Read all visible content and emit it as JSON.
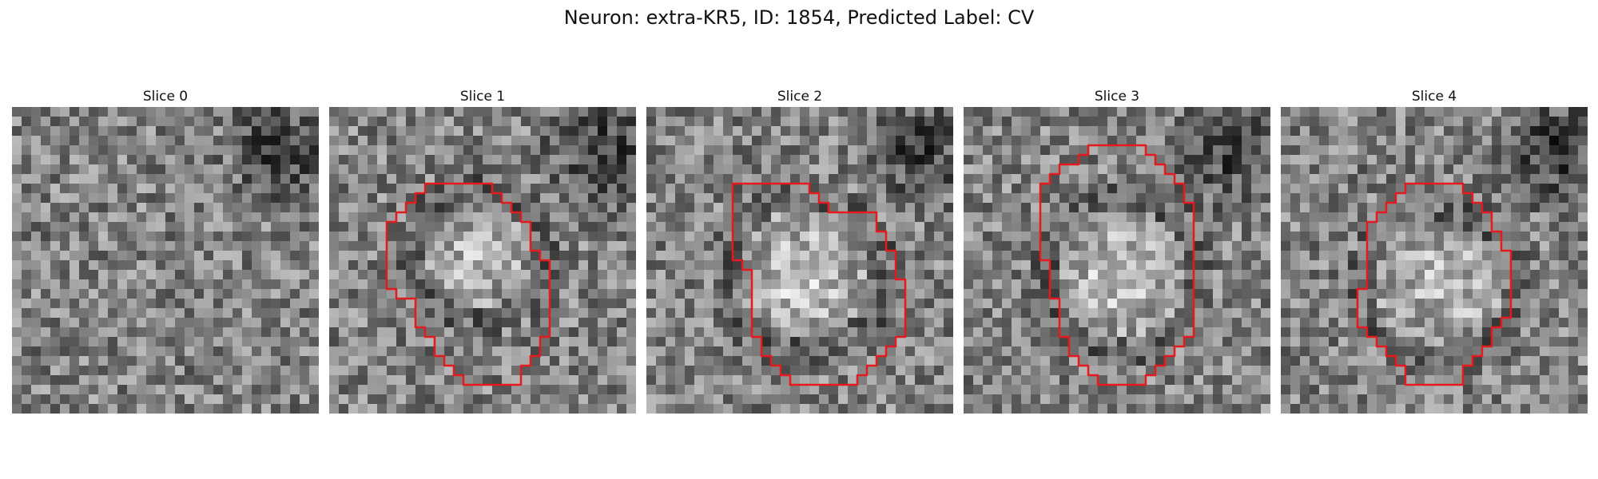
{
  "figure": {
    "title": "Neuron: extra-KR5, ID: 1854, Predicted Label: CV",
    "contour_color": "#e41a1c"
  },
  "panels": [
    {
      "title": "Slice 0"
    },
    {
      "title": "Slice 1"
    },
    {
      "title": "Slice 2"
    },
    {
      "title": "Slice 3"
    },
    {
      "title": "Slice 4"
    }
  ]
}
